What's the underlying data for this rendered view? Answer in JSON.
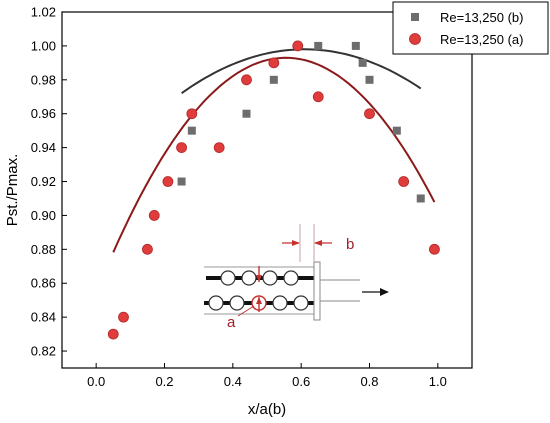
{
  "chart_data": {
    "type": "scatter",
    "title": "",
    "xlabel": "x/a(b)",
    "ylabel": "Pst./Pmax.",
    "xlim": [
      -0.1,
      1.1
    ],
    "ylim": [
      0.81,
      1.02
    ],
    "xticks": [
      0.0,
      0.2,
      0.4,
      0.6,
      0.8,
      1.0
    ],
    "xtick_labels": [
      "0.0",
      "0.2",
      "0.4",
      "0.6",
      "0.8",
      "1.0"
    ],
    "yticks": [
      0.82,
      0.84,
      0.86,
      0.88,
      0.9,
      0.92,
      0.94,
      0.96,
      0.98,
      1.0,
      1.02
    ],
    "ytick_labels": [
      "0.82",
      "0.84",
      "0.86",
      "0.88",
      "0.90",
      "0.92",
      "0.94",
      "0.96",
      "0.98",
      "1.00",
      "1.02"
    ],
    "grid": false,
    "legend_position": "top-right",
    "series": [
      {
        "name": "Re=13,250 (b)",
        "marker": "square",
        "color": "#6d6d6d",
        "fit_color": "#333333",
        "points": [
          [
            0.25,
            0.92
          ],
          [
            0.28,
            0.95
          ],
          [
            0.44,
            0.96
          ],
          [
            0.52,
            0.98
          ],
          [
            0.65,
            1.0
          ],
          [
            0.76,
            1.0
          ],
          [
            0.78,
            0.99
          ],
          [
            0.8,
            0.98
          ],
          [
            0.88,
            0.95
          ],
          [
            0.95,
            0.91
          ]
        ],
        "fit": [
          0.61,
          0.998,
          0.2
        ]
      },
      {
        "name": "Re=13,250 (a)",
        "marker": "circle",
        "color": "#e03c3c",
        "fit_color": "#8b1a1a",
        "points": [
          [
            0.05,
            0.83
          ],
          [
            0.08,
            0.84
          ],
          [
            0.15,
            0.88
          ],
          [
            0.17,
            0.9
          ],
          [
            0.21,
            0.92
          ],
          [
            0.25,
            0.94
          ],
          [
            0.28,
            0.96
          ],
          [
            0.36,
            0.94
          ],
          [
            0.44,
            0.98
          ],
          [
            0.52,
            0.99
          ],
          [
            0.59,
            1.0
          ],
          [
            0.65,
            0.97
          ],
          [
            0.8,
            0.96
          ],
          [
            0.9,
            0.92
          ],
          [
            0.99,
            0.88
          ]
        ],
        "fit": [
          0.555,
          0.993,
          0.45
        ]
      }
    ],
    "inset_labels": {
      "b": "b",
      "a": "a"
    }
  }
}
